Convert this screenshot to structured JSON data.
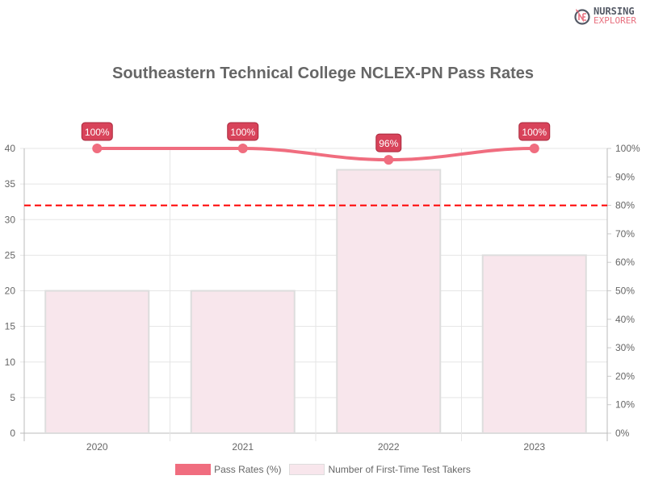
{
  "logo": {
    "line1": "NURSING",
    "line2": "EXPLORER"
  },
  "chart_data": {
    "type": "bar+line",
    "title": "Southeastern Technical College NCLEX-PN Pass Rates",
    "categories": [
      "2020",
      "2021",
      "2022",
      "2023"
    ],
    "series": [
      {
        "name": "Pass Rates (%)",
        "type": "line",
        "axis": "right",
        "values": [
          100,
          100,
          96,
          100
        ],
        "labels": [
          "100%",
          "100%",
          "96%",
          "100%"
        ],
        "color": "#f06d7f"
      },
      {
        "name": "Number of First-Time Test Takers",
        "type": "bar",
        "axis": "left",
        "values": [
          20,
          20,
          37,
          25
        ],
        "color": "#f8e6ec"
      }
    ],
    "left_axis": {
      "ylim": [
        0,
        40
      ],
      "ticks": [
        "0",
        "5",
        "10",
        "15",
        "20",
        "25",
        "30",
        "35",
        "40"
      ]
    },
    "right_axis": {
      "ylim": [
        0,
        100
      ],
      "ticks": [
        "0%",
        "10%",
        "20%",
        "30%",
        "40%",
        "50%",
        "60%",
        "70%",
        "80%",
        "90%",
        "100%"
      ]
    },
    "reference_line": {
      "value": 80,
      "axis": "right",
      "style": "dashed",
      "color": "#ff0000"
    },
    "grid": true,
    "legend": "bottom"
  }
}
